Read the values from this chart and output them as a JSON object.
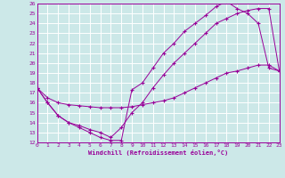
{
  "xlabel": "Windchill (Refroidissement éolien,°C)",
  "bg_color": "#cce8e8",
  "line_color": "#990099",
  "grid_color": "#ffffff",
  "xmin": 0,
  "xmax": 23,
  "ymin": 12,
  "ymax": 26,
  "line1_x": [
    0,
    1,
    2,
    3,
    4,
    5,
    6,
    7,
    8,
    9,
    10,
    11,
    12,
    13,
    14,
    15,
    16,
    17,
    18,
    19,
    20,
    21,
    22,
    23
  ],
  "line1_y": [
    17.5,
    16.0,
    14.7,
    14.0,
    13.5,
    13.0,
    12.5,
    12.2,
    12.2,
    17.3,
    18.0,
    19.5,
    21.0,
    22.0,
    23.2,
    24.0,
    24.8,
    25.7,
    26.2,
    25.5,
    25.0,
    24.0,
    19.5,
    19.2
  ],
  "line2_x": [
    0,
    1,
    2,
    3,
    4,
    5,
    6,
    7,
    8,
    9,
    10,
    11,
    12,
    13,
    14,
    15,
    16,
    17,
    18,
    19,
    20,
    21,
    22,
    23
  ],
  "line2_y": [
    17.5,
    16.0,
    14.7,
    14.0,
    13.7,
    13.3,
    13.0,
    12.5,
    13.5,
    15.0,
    16.0,
    17.5,
    18.8,
    20.0,
    21.0,
    22.0,
    23.0,
    24.0,
    24.5,
    25.0,
    25.3,
    25.5,
    25.5,
    19.2
  ],
  "line3_x": [
    0,
    1,
    2,
    3,
    4,
    5,
    6,
    7,
    8,
    9,
    10,
    11,
    12,
    13,
    14,
    15,
    16,
    17,
    18,
    19,
    20,
    21,
    22,
    23
  ],
  "line3_y": [
    17.5,
    16.5,
    16.0,
    15.8,
    15.7,
    15.6,
    15.5,
    15.5,
    15.5,
    15.6,
    15.8,
    16.0,
    16.2,
    16.5,
    17.0,
    17.5,
    18.0,
    18.5,
    19.0,
    19.2,
    19.5,
    19.8,
    19.8,
    19.2
  ],
  "yticks": [
    12,
    13,
    14,
    15,
    16,
    17,
    18,
    19,
    20,
    21,
    22,
    23,
    24,
    25,
    26
  ],
  "xticks": [
    0,
    1,
    2,
    3,
    4,
    5,
    6,
    7,
    8,
    9,
    10,
    11,
    12,
    13,
    14,
    15,
    16,
    17,
    18,
    19,
    20,
    21,
    22,
    23
  ]
}
